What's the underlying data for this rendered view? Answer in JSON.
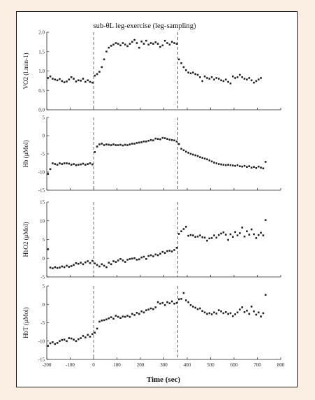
{
  "chart_data": {
    "type": "scatter",
    "title": "sub-θL leg-exercise (leg-sampling)",
    "xlabel": "Time (sec)",
    "xlim": [
      -200,
      800
    ],
    "xticks": [
      "-200",
      "-100",
      "0",
      "100",
      "200",
      "300",
      "400",
      "500",
      "600",
      "700",
      "800"
    ],
    "xtick_values": [
      -200,
      -100,
      0,
      100,
      200,
      300,
      400,
      500,
      600,
      700,
      800
    ],
    "vlines": [
      0,
      360
    ],
    "marker_color": "#222222",
    "panels": [
      {
        "ylabel": "VO2 (l.min-1)",
        "ylim": [
          0,
          2
        ],
        "yticks": [
          "0.0",
          "0.5",
          "1.0",
          "1.5",
          "2.0"
        ],
        "ytick_values": [
          0,
          0.5,
          1,
          1.5,
          2
        ],
        "x": [
          -195,
          -185,
          -175,
          -165,
          -155,
          -145,
          -135,
          -125,
          -115,
          -105,
          -95,
          -85,
          -75,
          -65,
          -55,
          -45,
          -35,
          -25,
          -15,
          -5,
          5,
          15,
          25,
          35,
          45,
          55,
          65,
          75,
          85,
          95,
          105,
          115,
          125,
          135,
          145,
          155,
          165,
          175,
          185,
          195,
          205,
          215,
          225,
          235,
          245,
          255,
          265,
          275,
          285,
          295,
          305,
          315,
          325,
          335,
          345,
          355,
          365,
          375,
          385,
          395,
          405,
          415,
          425,
          435,
          445,
          455,
          465,
          475,
          485,
          495,
          505,
          515,
          525,
          535,
          545,
          555,
          565,
          575,
          585,
          595,
          605,
          615,
          625,
          635,
          645,
          655,
          665,
          675,
          685,
          695,
          705,
          715
        ],
        "y": [
          0.82,
          0.86,
          0.8,
          0.78,
          0.76,
          0.79,
          0.74,
          0.71,
          0.73,
          0.78,
          0.84,
          0.8,
          0.73,
          0.76,
          0.75,
          0.8,
          0.72,
          0.76,
          0.72,
          0.7,
          0.88,
          0.92,
          0.98,
          1.1,
          1.3,
          1.5,
          1.6,
          1.65,
          1.68,
          1.72,
          1.7,
          1.66,
          1.72,
          1.68,
          1.64,
          1.7,
          1.75,
          1.8,
          1.72,
          1.6,
          1.76,
          1.7,
          1.78,
          1.68,
          1.72,
          1.7,
          1.74,
          1.7,
          1.62,
          1.66,
          1.78,
          1.72,
          1.68,
          1.75,
          1.72,
          1.7,
          1.3,
          1.2,
          1.1,
          1.02,
          0.96,
          0.94,
          0.96,
          0.92,
          0.9,
          0.84,
          0.74,
          0.86,
          0.82,
          0.8,
          0.84,
          0.78,
          0.82,
          0.8,
          0.76,
          0.74,
          0.78,
          0.72,
          0.68,
          0.86,
          0.82,
          0.84,
          0.9,
          0.84,
          0.8,
          0.78,
          0.82,
          0.76,
          0.7,
          0.74,
          0.78,
          0.82
        ]
      },
      {
        "ylabel": "Hb (μMol)",
        "ylim": [
          -15,
          5
        ],
        "yticks": [
          "-15",
          "-10",
          "-5",
          "0",
          "5"
        ],
        "ytick_values": [
          -15,
          -10,
          -5,
          0,
          5
        ],
        "x": [
          -195,
          -185,
          -175,
          -165,
          -155,
          -145,
          -135,
          -125,
          -115,
          -105,
          -95,
          -85,
          -75,
          -65,
          -55,
          -45,
          -35,
          -25,
          -15,
          -5,
          5,
          15,
          25,
          35,
          45,
          55,
          65,
          75,
          85,
          95,
          105,
          115,
          125,
          135,
          145,
          155,
          165,
          175,
          185,
          195,
          205,
          215,
          225,
          235,
          245,
          255,
          265,
          275,
          285,
          295,
          305,
          315,
          325,
          335,
          345,
          355,
          365,
          375,
          385,
          395,
          405,
          415,
          425,
          435,
          445,
          455,
          465,
          475,
          485,
          495,
          505,
          515,
          525,
          535,
          545,
          555,
          565,
          575,
          585,
          595,
          605,
          615,
          625,
          635,
          645,
          655,
          665,
          675,
          685,
          695,
          705,
          715,
          725,
          735
        ],
        "y": [
          -10.5,
          -9.2,
          -7.6,
          -7.8,
          -8,
          -7.6,
          -7.8,
          -7.6,
          -7.6,
          -7.7,
          -8,
          -7.8,
          -8.1,
          -8,
          -7.9,
          -7.7,
          -8,
          -7.8,
          -7.6,
          -7.9,
          -4.5,
          -3,
          -2.4,
          -2.2,
          -2.6,
          -2.4,
          -2.5,
          -2.6,
          -2.4,
          -2.6,
          -2.6,
          -2.5,
          -2.7,
          -2.5,
          -2.6,
          -2.4,
          -2.2,
          -2.2,
          -2,
          -1.9,
          -1.8,
          -1.6,
          -1.6,
          -1.4,
          -1.2,
          -1.3,
          -0.8,
          -0.9,
          -1,
          -0.6,
          -0.7,
          -0.9,
          -1.1,
          -1.2,
          -1.3,
          -1.6,
          -2.3,
          -3.6,
          -4,
          -4.4,
          -4.7,
          -5,
          -5.2,
          -5.4,
          -5.6,
          -5.9,
          -6.1,
          -6.3,
          -6.5,
          -6.8,
          -7.1,
          -7.4,
          -7.6,
          -7.8,
          -7.9,
          -8,
          -8.1,
          -8,
          -8.1,
          -8.2,
          -8.3,
          -8.1,
          -8.4,
          -8.5,
          -8.3,
          -8.6,
          -8.4,
          -8.8,
          -8.6,
          -8.9,
          -8.5,
          -8.8,
          -9,
          -7.2
        ]
      },
      {
        "ylabel": "HbO2 (μMol)",
        "ylim": [
          -5,
          15
        ],
        "yticks": [
          "-5",
          "0",
          "5",
          "10",
          "15"
        ],
        "ytick_values": [
          -5,
          0,
          5,
          10,
          15
        ],
        "x": [
          -195,
          -185,
          -175,
          -165,
          -155,
          -145,
          -135,
          -125,
          -115,
          -105,
          -95,
          -85,
          -75,
          -65,
          -55,
          -45,
          -35,
          -25,
          -15,
          -5,
          5,
          15,
          25,
          35,
          45,
          55,
          65,
          75,
          85,
          95,
          105,
          115,
          125,
          135,
          145,
          155,
          165,
          175,
          185,
          195,
          205,
          215,
          225,
          235,
          245,
          255,
          265,
          275,
          285,
          295,
          305,
          315,
          325,
          335,
          345,
          355,
          365,
          375,
          385,
          395,
          405,
          415,
          425,
          435,
          445,
          455,
          465,
          475,
          485,
          495,
          505,
          515,
          525,
          535,
          545,
          555,
          565,
          575,
          585,
          595,
          605,
          615,
          625,
          635,
          645,
          655,
          665,
          675,
          685,
          695,
          705,
          715,
          725,
          735
        ],
        "y": [
          2.4,
          -2.5,
          -2.7,
          -2.4,
          -2.6,
          -2.5,
          -2.2,
          -2.4,
          -2,
          -2.3,
          -2.1,
          -1.8,
          -1.3,
          -1.5,
          -1.2,
          -1.6,
          -1.1,
          -0.8,
          -1.3,
          -0.7,
          -1.4,
          -1.8,
          -2.2,
          -1.6,
          -2,
          -2.4,
          -1.2,
          -1.6,
          -0.8,
          -1,
          -0.6,
          -0.2,
          -0.6,
          -1,
          -0.4,
          -0.2,
          -0.1,
          0,
          -0.4,
          -0.3,
          0.2,
          0.4,
          -0.2,
          0.6,
          0.8,
          0.5,
          1,
          0.8,
          1.2,
          1.7,
          1.4,
          1.9,
          2,
          1.8,
          2.2,
          2.8,
          6.5,
          7.2,
          7.8,
          8.4,
          6,
          6.2,
          6.1,
          5.7,
          5.8,
          6.1,
          5.6,
          5.5,
          4.7,
          5.3,
          5.4,
          6.1,
          5.5,
          6.2,
          6.6,
          6.9,
          6.3,
          4.9,
          6.4,
          5.7,
          7,
          6.1,
          6.7,
          8.2,
          5.8,
          7.2,
          6.3,
          7.7,
          6.4,
          5.4,
          6.2,
          6.8,
          6.1,
          10.2
        ]
      },
      {
        "ylabel": "HbT (μMol)",
        "ylim": [
          -15,
          5
        ],
        "yticks": [
          "-15",
          "-10",
          "-5",
          "0",
          "5"
        ],
        "ytick_values": [
          -15,
          -10,
          -5,
          0,
          5
        ],
        "x": [
          -195,
          -185,
          -175,
          -165,
          -155,
          -145,
          -135,
          -125,
          -115,
          -105,
          -95,
          -85,
          -75,
          -65,
          -55,
          -45,
          -35,
          -25,
          -15,
          -5,
          5,
          15,
          25,
          35,
          45,
          55,
          65,
          75,
          85,
          95,
          105,
          115,
          125,
          135,
          145,
          155,
          165,
          175,
          185,
          195,
          205,
          215,
          225,
          235,
          245,
          255,
          265,
          275,
          285,
          295,
          305,
          315,
          325,
          335,
          345,
          355,
          365,
          375,
          385,
          395,
          405,
          415,
          425,
          435,
          445,
          455,
          465,
          475,
          485,
          495,
          505,
          515,
          525,
          535,
          545,
          555,
          565,
          575,
          585,
          595,
          605,
          615,
          625,
          635,
          645,
          655,
          665,
          675,
          685,
          695,
          705,
          715,
          725,
          735
        ],
        "y": [
          -11.3,
          -10.6,
          -10.3,
          -10.8,
          -10.5,
          -10,
          -9.7,
          -9.6,
          -10,
          -9.2,
          -9.3,
          -9.6,
          -10,
          -9.5,
          -9.2,
          -8.6,
          -9,
          -8.3,
          -8.8,
          -8.1,
          -7.7,
          -6.6,
          -4.7,
          -4.4,
          -4.3,
          -4.1,
          -3.8,
          -3.5,
          -3.9,
          -3.1,
          -3.4,
          -3.7,
          -3.3,
          -3.4,
          -3.1,
          -3.4,
          -2.6,
          -2.9,
          -2.3,
          -2.6,
          -1.9,
          -2.2,
          -1.6,
          -1.4,
          -1.1,
          -1.3,
          -0.8,
          0.6,
          0.2,
          0.4,
          -0.2,
          0.6,
          0.3,
          0.8,
          0.2,
          0.4,
          1.4,
          1.5,
          3.1,
          1.1,
          0.6,
          -0.2,
          -0.6,
          -0.9,
          -1.3,
          -1.1,
          -1.8,
          -2.2,
          -2.6,
          -2.4,
          -2.7,
          -2.2,
          -2.5,
          -1.6,
          -1.9,
          -2.4,
          -2.1,
          -2.6,
          -2.4,
          -3.2,
          -2.7,
          -2.2,
          -1.4,
          -0.8,
          -2.1,
          -1.7,
          -2.6,
          -0.6,
          -1.9,
          -2.8,
          -2.2,
          -3.3,
          -2.4,
          2.6
        ]
      }
    ]
  }
}
